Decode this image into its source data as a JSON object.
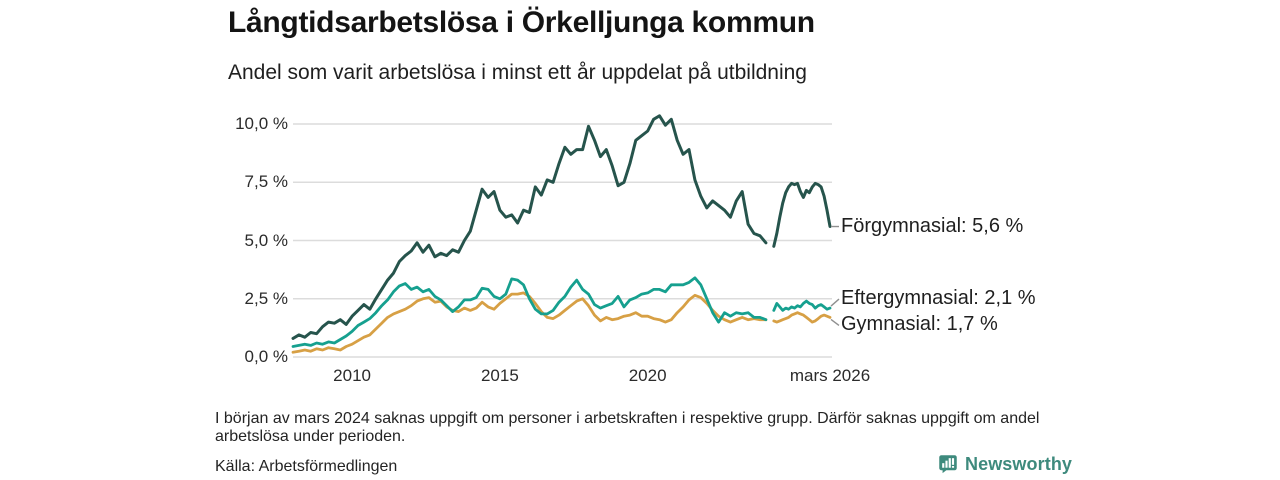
{
  "header": {
    "title": "Långtidsarbetslösa i Örkelljunga kommun",
    "subtitle": "Andel som varit arbetslösa i minst ett år uppdelat på utbildning"
  },
  "chart_data": {
    "type": "line",
    "title": "Långtidsarbetslösa i Örkelljunga kommun",
    "subtitle": "Andel som varit arbetslösa i minst ett år uppdelat på utbildning",
    "unit": "%",
    "grid": "horizontal-only",
    "x_axis": {
      "range": [
        2008.0,
        2026.17
      ],
      "ticks": [
        {
          "label": "2010",
          "x": 2010
        },
        {
          "label": "2015",
          "x": 2015
        },
        {
          "label": "2020",
          "x": 2020
        },
        {
          "label": "mars 2026",
          "x": 2026.17
        }
      ]
    },
    "y_axis": {
      "range": [
        0,
        10
      ],
      "ticks": [
        {
          "label": "0,0 %",
          "value": 0
        },
        {
          "label": "2,5 %",
          "value": 2.5
        },
        {
          "label": "5,0 %",
          "value": 5
        },
        {
          "label": "7,5 %",
          "value": 7.5
        },
        {
          "label": "10,0 %",
          "value": 10
        }
      ]
    },
    "data_gap": {
      "from": 2024.0,
      "to": 2024.27,
      "reason": "saknas uppgift mars 2024"
    },
    "series": [
      {
        "name": "Gymnasial",
        "end_label": "Gymnasial: 1,7 %",
        "end_value": "1,7 %",
        "color": "#d7a045",
        "stroke_width": 2.8,
        "label_offset": 8,
        "segments": [
          {
            "x0": 2008.0,
            "dx": 0.2,
            "y": [
              0.2,
              0.25,
              0.3,
              0.25,
              0.35,
              0.3,
              0.4,
              0.35,
              0.3,
              0.45,
              0.55,
              0.7,
              0.85,
              0.95,
              1.2,
              1.45,
              1.7,
              1.85,
              1.95,
              2.05,
              2.2,
              2.4,
              2.5,
              2.55,
              2.35,
              2.4,
              2.15,
              2.0,
              1.95,
              2.1,
              2.0,
              2.1,
              2.35,
              2.15,
              2.05,
              2.3,
              2.5,
              2.7,
              2.7,
              2.75,
              2.6,
              2.3,
              1.95,
              1.7,
              1.65,
              1.8,
              2.0,
              2.2,
              2.4,
              2.5,
              2.2,
              1.8,
              1.55,
              1.7,
              1.6,
              1.65,
              1.75,
              1.8,
              1.9,
              1.75,
              1.75,
              1.65,
              1.6,
              1.5,
              1.6,
              1.9,
              2.15,
              2.45,
              2.65,
              2.55,
              2.3,
              2.0,
              1.75,
              1.6,
              1.5,
              1.6,
              1.7,
              1.6,
              1.65,
              1.6,
              1.6
            ]
          },
          {
            "x0": 2024.27,
            "dx": 0.1,
            "y": [
              1.55,
              1.5,
              1.55,
              1.6,
              1.65,
              1.7,
              1.8,
              1.85,
              1.9,
              1.85,
              1.8,
              1.7,
              1.6,
              1.5,
              1.55,
              1.65,
              1.75,
              1.8,
              1.75,
              1.7
            ]
          }
        ]
      },
      {
        "name": "Eftergymnasial",
        "end_label": "Eftergymnasial: 2,1 %",
        "end_value": "2,1 %",
        "color": "#16a08f",
        "stroke_width": 2.8,
        "label_offset": -9,
        "segments": [
          {
            "x0": 2008.0,
            "dx": 0.2,
            "y": [
              0.45,
              0.5,
              0.55,
              0.5,
              0.6,
              0.55,
              0.65,
              0.6,
              0.75,
              0.9,
              1.1,
              1.35,
              1.5,
              1.65,
              1.9,
              2.2,
              2.45,
              2.8,
              3.05,
              3.15,
              2.9,
              3.0,
              2.8,
              2.9,
              2.6,
              2.45,
              2.2,
              1.95,
              2.15,
              2.45,
              2.45,
              2.55,
              2.95,
              2.9,
              2.6,
              2.5,
              2.7,
              3.35,
              3.3,
              3.1,
              2.5,
              2.05,
              1.85,
              1.85,
              2.0,
              2.35,
              2.6,
              3.0,
              3.3,
              2.9,
              2.7,
              2.25,
              2.1,
              2.2,
              2.3,
              2.6,
              2.15,
              2.45,
              2.55,
              2.7,
              2.75,
              2.9,
              2.9,
              2.8,
              3.1,
              3.1,
              3.1,
              3.2,
              3.4,
              3.1,
              2.5,
              1.9,
              1.5,
              1.9,
              1.75,
              1.9,
              1.85,
              1.9,
              1.7,
              1.7,
              1.6
            ]
          },
          {
            "x0": 2024.27,
            "dx": 0.1,
            "y": [
              2.0,
              2.3,
              2.15,
              2.0,
              2.1,
              2.05,
              2.15,
              2.1,
              2.2,
              2.15,
              2.3,
              2.4,
              2.3,
              2.25,
              2.1,
              2.2,
              2.25,
              2.15,
              2.05,
              2.1
            ]
          }
        ]
      },
      {
        "name": "Förgymnasial",
        "end_label": "Förgymnasial: 5,6 %",
        "end_value": "5,6 %",
        "color": "#26544c",
        "stroke_width": 3,
        "label_offset": 0,
        "segments": [
          {
            "x0": 2008.0,
            "dx": 0.2,
            "y": [
              0.8,
              0.95,
              0.85,
              1.05,
              1.0,
              1.3,
              1.5,
              1.45,
              1.6,
              1.4,
              1.75,
              2.0,
              2.25,
              2.05,
              2.5,
              2.9,
              3.3,
              3.6,
              4.1,
              4.35,
              4.55,
              4.9,
              4.5,
              4.8,
              4.3,
              4.45,
              4.35,
              4.6,
              4.5,
              5.0,
              5.4,
              6.3,
              7.2,
              6.85,
              7.1,
              6.3,
              6.0,
              6.1,
              5.75,
              6.3,
              6.2,
              7.3,
              6.95,
              7.6,
              7.5,
              8.3,
              9.0,
              8.7,
              8.9,
              8.9,
              9.9,
              9.3,
              8.6,
              8.9,
              8.2,
              7.35,
              7.5,
              8.3,
              9.3,
              9.5,
              9.7,
              10.2,
              10.35,
              9.95,
              10.2,
              9.3,
              8.7,
              8.9,
              7.6,
              6.9,
              6.4,
              6.7,
              6.5,
              6.3,
              6.0,
              6.7,
              7.1,
              5.7,
              5.3,
              5.2,
              4.9
            ]
          },
          {
            "x0": 2024.27,
            "dx": 0.1,
            "y": [
              4.75,
              5.3,
              6.0,
              6.6,
              7.05,
              7.3,
              7.45,
              7.4,
              7.45,
              7.1,
              6.85,
              7.15,
              7.05,
              7.3,
              7.45,
              7.4,
              7.3,
              6.9,
              6.3,
              5.6
            ]
          }
        ]
      }
    ],
    "colors": {
      "grid": "#dcdcdc",
      "leader": "#8f8f8f",
      "forgymnasial": "#26544c",
      "eftergymnasial": "#16a08f",
      "gymnasial": "#d7a045"
    }
  },
  "footnote": {
    "text": "I början av mars 2024 saknas uppgift om personer i arbetskraften i respektive grupp. Därför saknas uppgift om andel arbetslösa under perioden."
  },
  "source": {
    "text": "Källa: Arbetsförmedlingen"
  },
  "branding": {
    "name": "Newsworthy",
    "icon": "newsworthy-bar-chart-bubble-icon",
    "color": "#3e8a7d"
  }
}
